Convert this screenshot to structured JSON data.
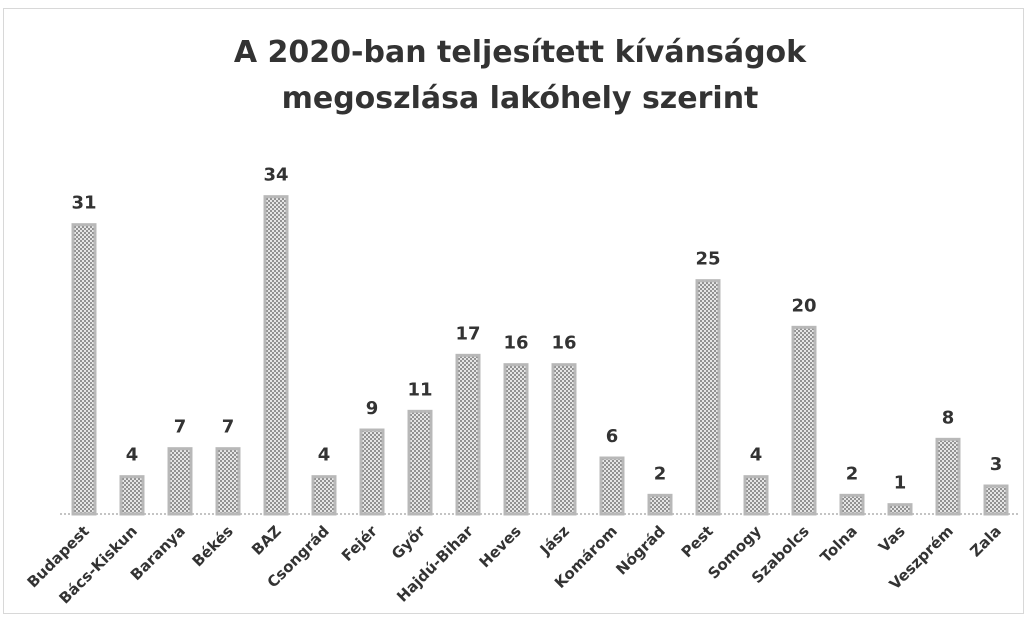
{
  "chart_data": {
    "type": "bar",
    "title": "A 2020-ban teljesített kívánságok megoszlása lakóhely szerint",
    "categories": [
      "Budapest",
      "Bács-Kiskun",
      "Baranya",
      "Békés",
      "BAZ",
      "Csongrád",
      "Fejér",
      "Győr",
      "Hajdú-Bihar",
      "Heves",
      "Jász",
      "Komárom",
      "Nógrád",
      "Pest",
      "Somogy",
      "Szabolcs",
      "Tolna",
      "Vas",
      "Veszprém",
      "Zala"
    ],
    "values": [
      31,
      4,
      7,
      7,
      34,
      4,
      9,
      11,
      17,
      16,
      16,
      6,
      2,
      25,
      4,
      20,
      2,
      1,
      8,
      3
    ],
    "color": "#b8b8b8",
    "ylim": [
      0,
      36
    ]
  }
}
